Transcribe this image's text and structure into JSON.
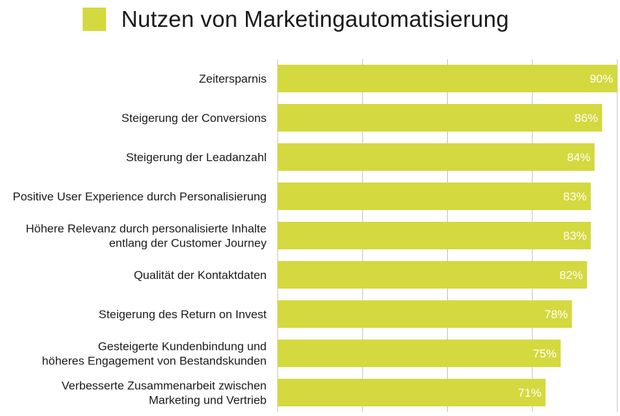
{
  "chart_data": {
    "type": "bar",
    "orientation": "horizontal",
    "title": "Nutzen von Marketingautomatisierung",
    "xlabel": "",
    "ylabel": "",
    "xlim": [
      0,
      90
    ],
    "grid": true,
    "legend": "top-left",
    "categories": [
      [
        "Zeitersparnis"
      ],
      [
        "Steigerung der Conversions"
      ],
      [
        "Steigerung der Leadanzahl"
      ],
      [
        "Positive User Experience durch Personalisierung"
      ],
      [
        "Höhere Relevanz durch personalisierte Inhalte",
        "entlang der Customer Journey"
      ],
      [
        "Qualität der Kontaktdaten"
      ],
      [
        "Steigerung des Return on Invest"
      ],
      [
        "Gesteigerte Kundenbindung und",
        "höheres Engagement von Bestandskunden"
      ],
      [
        "Verbesserte Zusammenarbeit zwischen",
        "Marketing und Vertrieb"
      ]
    ],
    "values": [
      90,
      86,
      84,
      83,
      83,
      82,
      78,
      75,
      71
    ],
    "value_labels": [
      "90%",
      "86%",
      "84%",
      "83%",
      "83%",
      "82%",
      "78%",
      "75%",
      "71%"
    ],
    "colors": {
      "bar": "#d4d93f",
      "grid": "#bfbfbf",
      "value_text": "#ffffff"
    }
  }
}
